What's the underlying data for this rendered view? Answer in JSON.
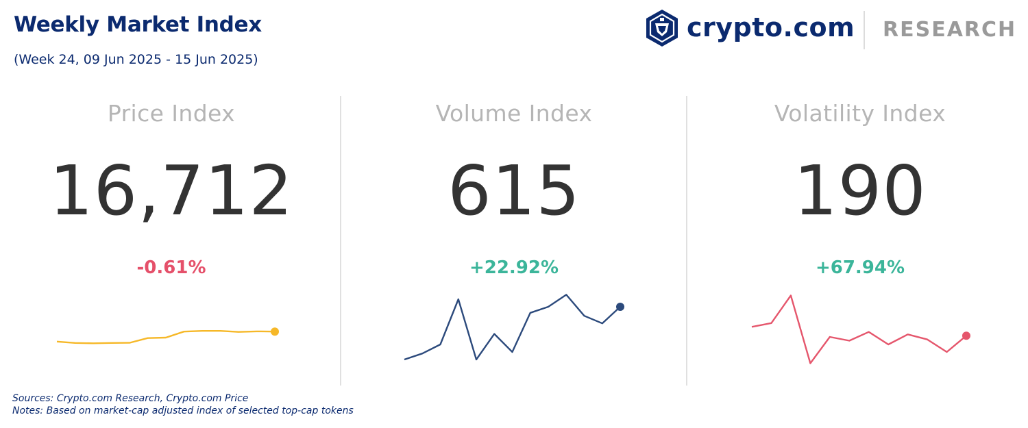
{
  "header": {
    "title": "Weekly Market Index",
    "subtitle": "(Week 24, 09 Jun 2025 - 15 Jun 2025)"
  },
  "brand": {
    "name": "crypto.com",
    "section": "RESEARCH",
    "logo_icon": "crypto-com-lion-shield-icon",
    "primary_color": "#0b2a6f"
  },
  "colors": {
    "negative": "#e5506a",
    "positive": "#3bb59a"
  },
  "chart_data": [
    {
      "type": "line",
      "title": "Price Index",
      "value": "16,712",
      "change": "-0.61%",
      "trend": "negative",
      "color": "#f6b828",
      "values": [
        15.2,
        14.4,
        14.2,
        14.4,
        14.5,
        17.3,
        17.6,
        21.2,
        21.6,
        21.6,
        21.0,
        21.3,
        21.2
      ],
      "ylim": [
        0,
        45
      ]
    },
    {
      "type": "line",
      "title": "Volume Index",
      "value": "615",
      "change": "+22.92%",
      "trend": "positive",
      "color": "#2c4a7c",
      "values": [
        5,
        9,
        15,
        45,
        5,
        22,
        10,
        36,
        40,
        48,
        34,
        29,
        40
      ],
      "ylim": [
        0,
        50
      ]
    },
    {
      "type": "line",
      "title": "Volatility Index",
      "value": "190",
      "change": "+67.94%",
      "trend": "positive",
      "color": "#e5566c",
      "values": [
        32,
        35,
        57,
        3,
        24,
        21,
        28,
        18,
        26,
        22,
        12,
        25
      ],
      "ylim": [
        0,
        60
      ]
    }
  ],
  "footer": {
    "sources": "Sources: Crypto.com Research,  Crypto.com Price",
    "notes": "Notes: Based on market-cap adjusted index of selected top-cap tokens"
  }
}
